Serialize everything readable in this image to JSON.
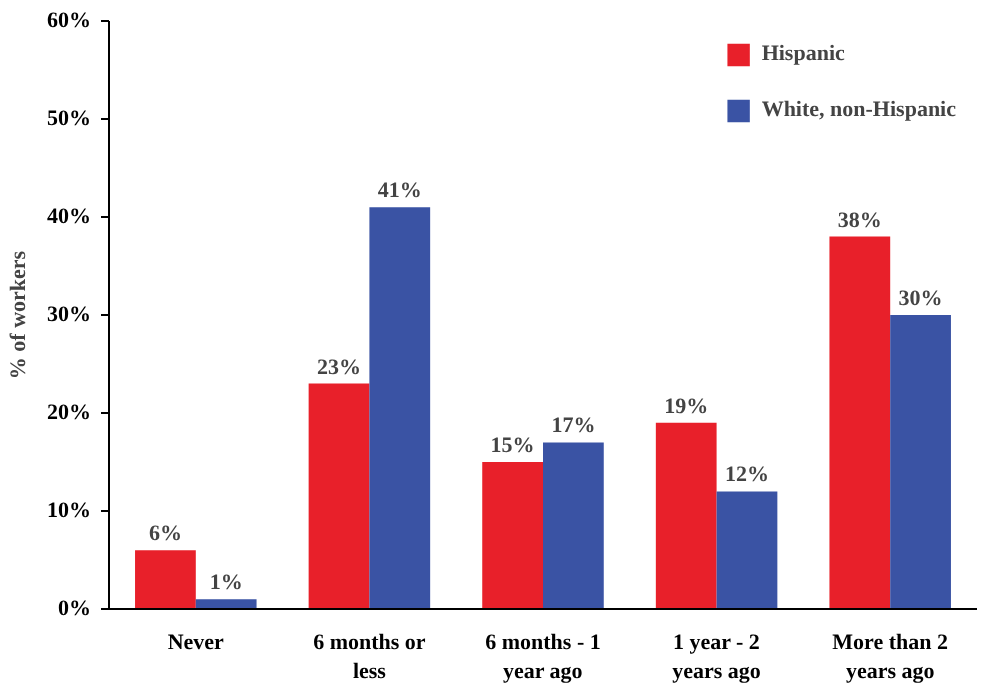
{
  "chart_data": {
    "type": "bar",
    "ylabel": "% of workers",
    "categories": [
      "Never",
      "6 months or less",
      "6 months - 1 year ago",
      "1 year - 2 years ago",
      "More than 2 years ago"
    ],
    "series": [
      {
        "name": "Hispanic",
        "color": "#e8202a",
        "values": [
          6,
          23,
          15,
          19,
          38
        ],
        "value_labels": [
          "6%",
          "23%",
          "15%",
          "19%",
          "38%"
        ]
      },
      {
        "name": "White, non-Hispanic",
        "color": "#3a53a4",
        "values": [
          1,
          41,
          17,
          12,
          30
        ],
        "value_labels": [
          "1%",
          "41%",
          "17%",
          "12%",
          "30%"
        ]
      }
    ],
    "ylim": [
      0,
      60
    ],
    "yticks": [
      {
        "value": 0,
        "label": "0%"
      },
      {
        "value": 10,
        "label": "10%"
      },
      {
        "value": 20,
        "label": "20%"
      },
      {
        "value": 30,
        "label": "30%"
      },
      {
        "value": 40,
        "label": "40%"
      },
      {
        "value": 50,
        "label": "50%"
      },
      {
        "value": 60,
        "label": "60%"
      }
    ],
    "grid": false,
    "legend": "top right"
  }
}
